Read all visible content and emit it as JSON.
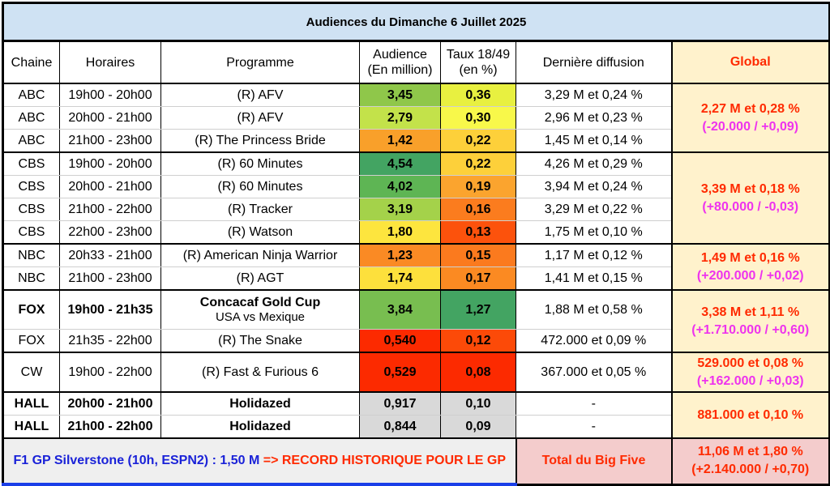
{
  "title": "Audiences du Dimanche 6 Juillet 2025",
  "headers": {
    "chaine": "Chaine",
    "horaires": "Horaires",
    "programme": "Programme",
    "audience_l1": "Audience",
    "audience_l2": "(En million)",
    "taux_l1": "Taux 18/49",
    "taux_l2": "(en %)",
    "derniere": "Dernière diffusion",
    "global": "Global"
  },
  "groups": [
    {
      "global_l1": "2,27 M et 0,28 %",
      "global_l2": "(-20.000 / +0,09)",
      "rows": [
        {
          "chaine": "ABC",
          "horaires": "19h00 - 20h00",
          "programme": "(R) AFV",
          "audience": "3,45",
          "audience_color": "#8fc74a",
          "taux": "0,36",
          "taux_color": "#e8f040",
          "derniere": "3,29 M et 0,24 %"
        },
        {
          "chaine": "ABC",
          "horaires": "20h00 - 21h00",
          "programme": "(R) AFV",
          "audience": "2,79",
          "audience_color": "#c3e24a",
          "taux": "0,30",
          "taux_color": "#f8f84a",
          "derniere": "2,96 M et 0,23 %"
        },
        {
          "chaine": "ABC",
          "horaires": "21h00 - 23h00",
          "programme": "(R) The Princess Bride",
          "audience": "1,42",
          "audience_color": "#f9a02a",
          "taux": "0,22",
          "taux_color": "#fdd03a",
          "derniere": "1,45 M et 0,14 %"
        }
      ]
    },
    {
      "global_l1": "3,39 M et 0,18 %",
      "global_l2": "(+80.000 / -0,03)",
      "rows": [
        {
          "chaine": "CBS",
          "horaires": "19h00 - 20h00",
          "programme": "(R) 60 Minutes",
          "audience": "4,54",
          "audience_color": "#43a462",
          "taux": "0,22",
          "taux_color": "#fdd03a",
          "derniere": "4,26 M et 0,29 %"
        },
        {
          "chaine": "CBS",
          "horaires": "20h00 - 21h00",
          "programme": "(R) 60 Minutes",
          "audience": "4,02",
          "audience_color": "#5eb554",
          "taux": "0,19",
          "taux_color": "#fba42e",
          "derniere": "3,94 M et 0,24 %"
        },
        {
          "chaine": "CBS",
          "horaires": "21h00 - 22h00",
          "programme": "(R) Tracker",
          "audience": "3,19",
          "audience_color": "#a4d24a",
          "taux": "0,16",
          "taux_color": "#fb7c1e",
          "derniere": "3,29 M et 0,22 %"
        },
        {
          "chaine": "CBS",
          "horaires": "22h00 - 23h00",
          "programme": "(R) Watson",
          "audience": "1,80",
          "audience_color": "#fde53e",
          "taux": "0,13",
          "taux_color": "#fc520c",
          "derniere": "1,75 M et 0,10 %"
        }
      ]
    },
    {
      "global_l1": "1,49 M et 0,16 %",
      "global_l2": "(+200.000 / +0,02)",
      "rows": [
        {
          "chaine": "NBC",
          "horaires": "20h33 - 21h00",
          "programme": "(R) American Ninja Warrior",
          "audience": "1,23",
          "audience_color": "#fa8a24",
          "taux": "0,15",
          "taux_color": "#fb7a1e",
          "derniere": "1,17 M et 0,12 %"
        },
        {
          "chaine": "NBC",
          "horaires": "21h00 - 23h00",
          "programme": "(R) AGT",
          "audience": "1,74",
          "audience_color": "#fde03c",
          "taux": "0,17",
          "taux_color": "#fb8a22",
          "derniere": "1,41 M et 0,15 %"
        }
      ]
    },
    {
      "global_l1": "3,38 M et 1,11 %",
      "global_l2": "(+1.710.000 / +0,60)",
      "rows": [
        {
          "chaine": "FOX",
          "horaires": "19h00 - 21h35",
          "programme": "Concacaf Gold Cup",
          "programme_sub": "USA vs Mexique",
          "audience": "3,84",
          "audience_color": "#78be50",
          "taux": "1,27",
          "taux_color": "#43a462",
          "derniere": "1,88 M et 0,58 %",
          "bold": true,
          "big": true
        },
        {
          "chaine": "FOX",
          "horaires": "21h35 - 22h00",
          "programme": "(R) The Snake",
          "audience": "0,540",
          "audience_color": "#fc2a00",
          "taux": "0,12",
          "taux_color": "#fc4a08",
          "derniere": "472.000 et 0,09 %"
        }
      ]
    },
    {
      "global_l1": "529.000 et 0,08 %",
      "global_l2": "(+162.000 / +0,03)",
      "rows": [
        {
          "chaine": "CW",
          "horaires": "19h00 - 22h00",
          "programme": "(R) Fast & Furious 6",
          "audience": "0,529",
          "audience_color": "#fc2a00",
          "taux": "0,08",
          "taux_color": "#fc2a00",
          "derniere": "367.000 et 0,05 %",
          "big": true
        }
      ]
    },
    {
      "global_l1": "881.000 et 0,10 %",
      "rows": [
        {
          "chaine": "HALL",
          "horaires": "20h00 - 21h00",
          "programme": "Holidazed",
          "audience": "0,917",
          "audience_color": "#d9d9d9",
          "taux": "0,10",
          "taux_color": "#d9d9d9",
          "derniere": "-",
          "bold": true
        },
        {
          "chaine": "HALL",
          "horaires": "21h00 - 22h00",
          "programme": "Holidazed",
          "audience": "0,844",
          "audience_color": "#d9d9d9",
          "taux": "0,09",
          "taux_color": "#d9d9d9",
          "derniere": "-",
          "bold": true
        }
      ]
    }
  ],
  "footer": {
    "f1_blue": "F1 GP Silverstone (10h, ESPN2) : 1,50 M",
    "f1_red": "=> RECORD HISTORIQUE POUR LE GP",
    "total_label": "Total du Big Five",
    "total_l1": "11,06 M et 1,80 %",
    "total_l2": "(+2.140.000 / +0,70)"
  }
}
